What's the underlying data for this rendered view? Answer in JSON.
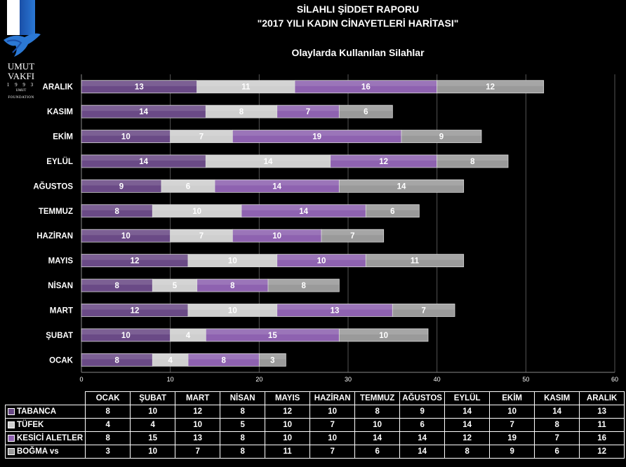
{
  "logo": {
    "line1": "UMUT",
    "line2": "VAKFI",
    "line3": "1 9 9 3",
    "line4": "UMUT",
    "line5": "FOUNDATION"
  },
  "title_line1": "SİLAHLI ŞİDDET RAPORU",
  "title_line2": "\"2017 YILI KADIN CİNAYETLERİ HARİTASI\"",
  "subtitle": "Olaylarda Kullanılan Silahlar",
  "colors": {
    "TABANCA": "#6a4a86",
    "TÜFEK": "#cfcfcf",
    "KESİCİ ALETLER": "#8e62b0",
    "BOĞMA vs": "#9a9a9a"
  },
  "chart_data": {
    "type": "bar",
    "orientation": "horizontal",
    "stacked": true,
    "categories": [
      "OCAK",
      "ŞUBAT",
      "MART",
      "NİSAN",
      "MAYIS",
      "HAZİRAN",
      "TEMMUZ",
      "AĞUSTOS",
      "EYLÜL",
      "EKİM",
      "KASIM",
      "ARALIK"
    ],
    "series": [
      {
        "name": "TABANCA",
        "values": [
          8,
          10,
          12,
          8,
          12,
          10,
          8,
          9,
          14,
          10,
          14,
          13
        ]
      },
      {
        "name": "TÜFEK",
        "values": [
          4,
          4,
          10,
          5,
          10,
          7,
          10,
          6,
          14,
          7,
          8,
          11
        ]
      },
      {
        "name": "KESİCİ ALETLER",
        "values": [
          8,
          15,
          13,
          8,
          10,
          10,
          14,
          14,
          12,
          19,
          7,
          16
        ]
      },
      {
        "name": "BOĞMA vs",
        "values": [
          3,
          10,
          7,
          8,
          11,
          7,
          6,
          14,
          8,
          9,
          6,
          12
        ]
      }
    ],
    "xlim": [
      0,
      60
    ],
    "xticks": [
      0,
      10,
      20,
      30,
      40,
      50,
      60
    ],
    "grid": true,
    "data_labels": true,
    "legend": "data table below chart"
  }
}
